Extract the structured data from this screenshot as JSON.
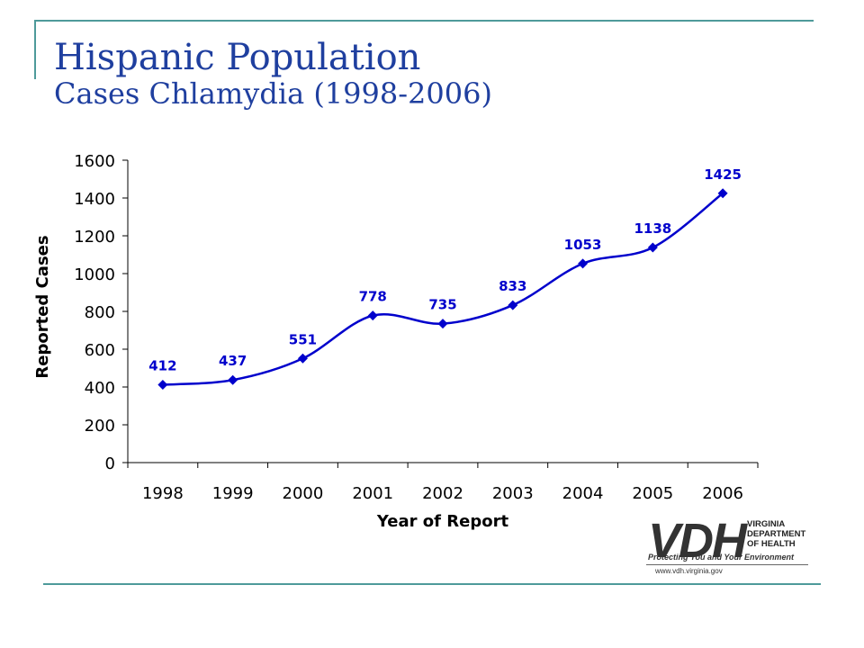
{
  "title": {
    "main": "Hispanic Population",
    "sub": "Cases Chlamydia (1998-2006)"
  },
  "colors": {
    "frame": "#4e9a9a",
    "title": "#1f3f9f",
    "series": "#0000cc",
    "axis": "#000000"
  },
  "chart_data": {
    "type": "line",
    "categories": [
      "1998",
      "1999",
      "2000",
      "2001",
      "2002",
      "2003",
      "2004",
      "2005",
      "2006"
    ],
    "series": [
      {
        "values": [
          412,
          437,
          551,
          778,
          735,
          833,
          1053,
          1138,
          1425
        ],
        "labels": [
          "412",
          "437",
          "551",
          "778",
          "735",
          "833",
          "1053",
          "1138",
          "1425"
        ],
        "marker": "diamond",
        "smoothed": true
      }
    ],
    "xlabel": "Year of Report",
    "ylabel": "Reported Cases",
    "ylim": [
      0,
      1600
    ],
    "yticks": [
      0,
      200,
      400,
      600,
      800,
      1000,
      1200,
      1400,
      1600
    ],
    "grid": false,
    "legend": "none"
  },
  "logo": {
    "mark": "VDH",
    "org_lines": [
      "VIRGINIA",
      "DEPARTMENT",
      "OF HEALTH"
    ],
    "tagline": "Protecting You and Your Environment",
    "url": "www.vdh.virginia.gov"
  }
}
